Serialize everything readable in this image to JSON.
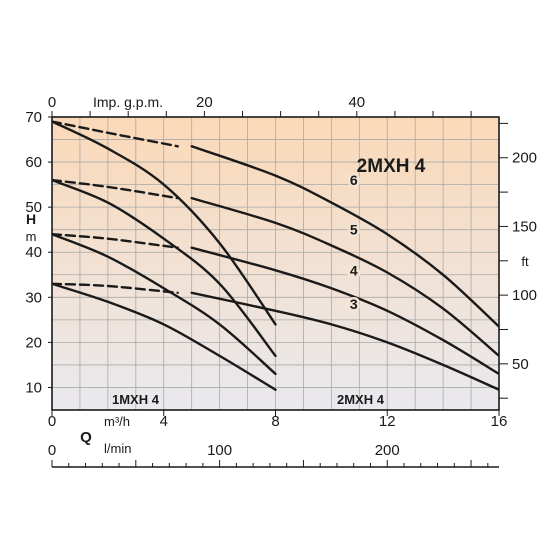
{
  "chart_data": {
    "type": "line",
    "title": "2MXH 4",
    "xlabel": "Q",
    "ylabel": "H",
    "y_unit": "m",
    "y_right_unit": "ft",
    "top_axis_label": "Imp. g.p.m.",
    "flow_unit_m3h": "m³/h",
    "flow_unit_lmin": "l/min",
    "xlim": [
      0,
      16
    ],
    "ylim": [
      5,
      70
    ],
    "grid": true,
    "background_gradient": [
      "#fbd9b8",
      "#e9e9ee"
    ],
    "y_ticks": [
      "10",
      "20",
      "30",
      "40",
      "50",
      "60",
      "70"
    ],
    "x_ticks_m3h": [
      "0",
      "4",
      "8",
      "12",
      "16"
    ],
    "x_ticks_gpm": [
      "0",
      "20",
      "40"
    ],
    "x_ticks_lmin": [
      "0",
      "100",
      "200"
    ],
    "y_ticks_ft": [
      "50",
      "100",
      "150",
      "200"
    ],
    "region_labels": [
      "1MXH 4",
      "2MXH 4"
    ],
    "series": [
      {
        "group": "1MXH 4",
        "name": "6",
        "x": [
          0,
          2,
          4,
          6,
          8
        ],
        "y": [
          69,
          63,
          55,
          42,
          24
        ]
      },
      {
        "group": "1MXH 4",
        "name": "5",
        "x": [
          0,
          2,
          4,
          6,
          8
        ],
        "y": [
          56,
          51,
          43,
          33,
          17
        ]
      },
      {
        "group": "1MXH 4",
        "name": "4",
        "x": [
          0,
          2,
          4,
          6,
          8
        ],
        "y": [
          44,
          39,
          32,
          24,
          13
        ]
      },
      {
        "group": "1MXH 4",
        "name": "3",
        "x": [
          0,
          2,
          4,
          6,
          8
        ],
        "y": [
          33,
          29,
          24,
          17,
          9.5
        ]
      },
      {
        "group": "2MXH 4",
        "name": "6",
        "x": [
          5,
          8,
          10,
          12,
          14,
          16
        ],
        "y": [
          63.5,
          57,
          51,
          44,
          35,
          23.5
        ]
      },
      {
        "group": "2MXH 4",
        "name": "5",
        "x": [
          5,
          8,
          10,
          12,
          14,
          16
        ],
        "y": [
          52,
          46.5,
          41.5,
          35.5,
          27.5,
          17
        ]
      },
      {
        "group": "2MXH 4",
        "name": "4",
        "x": [
          5,
          8,
          10,
          12,
          14,
          16
        ],
        "y": [
          41,
          36,
          32,
          27,
          20.5,
          13
        ]
      },
      {
        "group": "2MXH 4",
        "name": "3",
        "x": [
          5,
          8,
          10,
          12,
          14,
          16
        ],
        "y": [
          31,
          27,
          24,
          20,
          15,
          9.5
        ]
      },
      {
        "group": "2MXH 4",
        "name": "6-start",
        "style": "dashed",
        "x": [
          0,
          2,
          4.5
        ],
        "y": [
          69,
          66.5,
          63.5
        ]
      },
      {
        "group": "2MXH 4",
        "name": "5-start",
        "style": "dashed",
        "x": [
          0,
          2,
          4.5
        ],
        "y": [
          56,
          54.5,
          52
        ]
      },
      {
        "group": "2MXH 4",
        "name": "4-start",
        "style": "dashed",
        "x": [
          0,
          2,
          4.5
        ],
        "y": [
          44,
          43,
          41
        ]
      },
      {
        "group": "2MXH 4",
        "name": "3-start",
        "style": "dashed",
        "x": [
          0,
          2,
          4.5
        ],
        "y": [
          33,
          32.5,
          31
        ]
      }
    ],
    "curve_labels": [
      {
        "text": "6",
        "x": 10.8,
        "y": 56
      },
      {
        "text": "5",
        "x": 10.8,
        "y": 45
      },
      {
        "text": "4",
        "x": 10.8,
        "y": 36
      },
      {
        "text": "3",
        "x": 10.8,
        "y": 28.5
      }
    ]
  }
}
